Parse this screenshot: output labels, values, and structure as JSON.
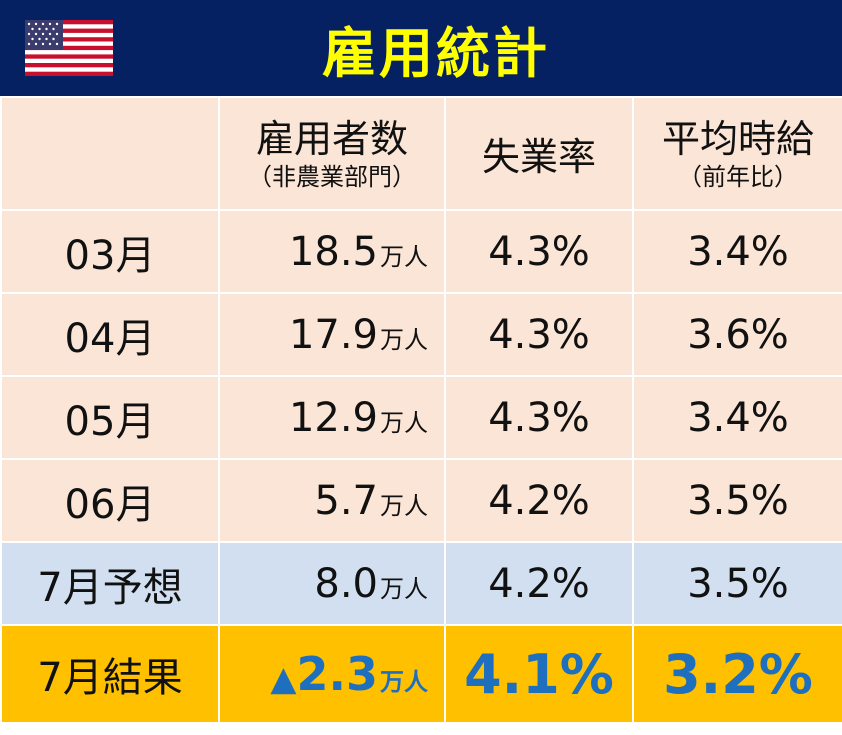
{
  "title": "雇用統計",
  "flag_icon": "us-flag-icon",
  "colors": {
    "header_bg": "#062161",
    "title": "#ffff00",
    "data_row": "#fbe5d6",
    "forecast_row": "#d1dff0",
    "result_row": "#ffc000",
    "result_text": "#1f6fbf"
  },
  "columns": [
    {
      "label": "",
      "sub": ""
    },
    {
      "label": "雇用者数",
      "sub": "（非農業部門）"
    },
    {
      "label": "失業率",
      "sub": ""
    },
    {
      "label": "平均時給",
      "sub": "（前年比）"
    }
  ],
  "rows": [
    {
      "month": "03月",
      "employment": "18.5",
      "unit": "万人",
      "unemployment": "4.3%",
      "wage": "3.4%"
    },
    {
      "month": "04月",
      "employment": "17.9",
      "unit": "万人",
      "unemployment": "4.3%",
      "wage": "3.6%"
    },
    {
      "month": "05月",
      "employment": "12.9",
      "unit": "万人",
      "unemployment": "4.3%",
      "wage": "3.4%"
    },
    {
      "month": "06月",
      "employment": "5.7",
      "unit": "万人",
      "unemployment": "4.2%",
      "wage": "3.5%"
    }
  ],
  "forecast": {
    "month": "7月予想",
    "employment": "8.0",
    "unit": "万人",
    "unemployment": "4.2%",
    "wage": "3.5%"
  },
  "result": {
    "month": "7月結果",
    "sign": "▲",
    "employment": "2.3",
    "unit": "万人",
    "unemployment": "4.1%",
    "wage": "3.2%"
  }
}
